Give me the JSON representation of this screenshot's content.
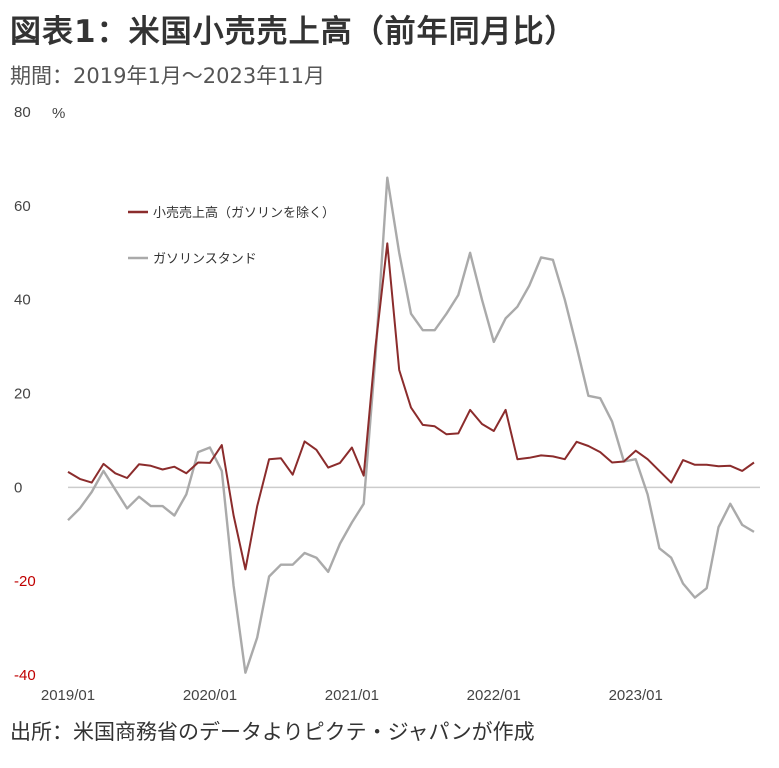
{
  "page": {
    "title": "図表1：米国小売売上高（前年同月比）",
    "subtitle": "期間：2019年1月～2023年11月",
    "source": "出所：米国商務省のデータよりピクテ・ジャパンが作成"
  },
  "chart_data": {
    "type": "line",
    "ylabel": "%",
    "ylim": [
      -40,
      80
    ],
    "yticks": [
      -40,
      -20,
      0,
      20,
      40,
      60,
      80
    ],
    "negative_tick_color": "#c00000",
    "x_start": "2019-01",
    "x_end": "2023-11",
    "xlim_months": [
      "2019-01",
      "2023-12"
    ],
    "xtick_labels": [
      "2019/01",
      "2020/01",
      "2021/01",
      "2022/01",
      "2023/01"
    ],
    "xtick_months": [
      "2019-01",
      "2020-01",
      "2021-01",
      "2022-01",
      "2023-01"
    ],
    "zero_line": true,
    "legend_position": "top-left",
    "series": [
      {
        "name": "小売売上高（ガソリンを除く）",
        "color": "#8b2c2c",
        "values": [
          3.3,
          1.8,
          1.0,
          5.0,
          3.0,
          2.0,
          4.9,
          4.6,
          3.8,
          4.4,
          3.0,
          5.3,
          5.2,
          9.0,
          -6.0,
          -17.5,
          -4.0,
          6.0,
          6.2,
          2.7,
          9.8,
          8.0,
          4.2,
          5.2,
          8.5,
          2.5,
          30.0,
          52.0,
          25.0,
          17.0,
          13.3,
          13.0,
          11.3,
          11.5,
          16.5,
          13.5,
          12.0,
          16.5,
          6.0,
          6.3,
          6.8,
          6.6,
          6.0,
          9.7,
          8.8,
          7.5,
          5.3,
          5.5,
          7.8,
          6.0,
          3.5,
          1.0,
          5.8,
          4.8,
          4.8,
          4.5,
          4.6,
          3.5,
          5.3
        ]
      },
      {
        "name": "ガソリンスタンド",
        "color": "#aaaaaa",
        "values": [
          -7.0,
          -4.5,
          -1.0,
          3.5,
          -0.5,
          -4.5,
          -2.0,
          -4.0,
          -4.0,
          -6.0,
          -1.5,
          7.5,
          8.5,
          3.5,
          -21.0,
          -39.5,
          -32.0,
          -19.0,
          -16.5,
          -16.5,
          -14.0,
          -15.0,
          -18.0,
          -12.0,
          -7.5,
          -3.5,
          28.0,
          66.0,
          50.0,
          37.0,
          33.5,
          33.5,
          37.0,
          41.0,
          50.0,
          40.0,
          31.0,
          36.0,
          38.5,
          43.0,
          49.0,
          48.5,
          40.0,
          30.0,
          19.5,
          19.0,
          14.0,
          5.5,
          6.0,
          -1.5,
          -13.0,
          -15.0,
          -20.5,
          -23.5,
          -21.5,
          -8.5,
          -3.5,
          -8.0,
          -9.5
        ]
      }
    ]
  }
}
